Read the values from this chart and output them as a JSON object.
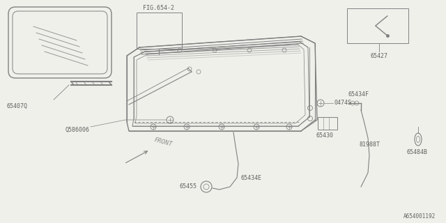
{
  "bg_color": "#f0f0eb",
  "line_color": "#808080",
  "text_color": "#606060",
  "fig_width": 6.4,
  "fig_height": 3.2,
  "dpi": 100,
  "labels": {
    "fig_ref": "FIG.654-2",
    "part_65427": "65427",
    "part_65407Q": "65407Q",
    "part_Q586006": "Q586006",
    "part_65434F": "65434F",
    "part_81988T": "81988T",
    "part_0474S": "0474S",
    "part_65430": "65430",
    "part_65484B": "65484B",
    "part_65455": "65455",
    "part_65434E": "65434E",
    "front_label": "FRONT",
    "part_number": "A654001192"
  }
}
